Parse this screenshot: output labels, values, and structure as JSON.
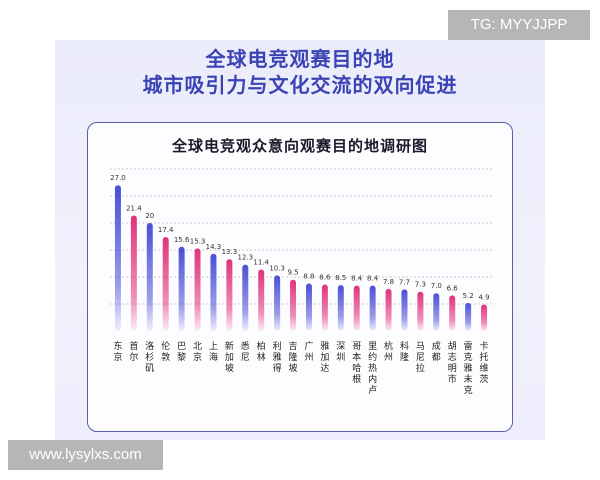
{
  "watermarks": {
    "top": "TG: MYYJJPP",
    "bottom": "www.lysylxs.com"
  },
  "headline": {
    "line1": "全球电竞观赛目的地",
    "line2": "城市吸引力与文化交流的双向促进"
  },
  "colors": {
    "blue_bar": "#4a4fd6",
    "pink_bar": "#e0337e",
    "headline": "#3a43b4",
    "grid": "#b8b8c8"
  },
  "chart_data": {
    "type": "bar",
    "title": "全球电竞观众意向观赛目的地调研图",
    "categories": [
      "东京",
      "首尔",
      "洛杉矶",
      "伦敦",
      "巴黎",
      "北京",
      "上海",
      "新加坡",
      "悉尼",
      "柏林",
      "利雅得",
      "吉隆坡",
      "广州",
      "雅加达",
      "深圳",
      "哥本哈根",
      "里约热内卢",
      "杭州",
      "科隆",
      "马尼拉",
      "成都",
      "胡志明市",
      "雷克雅未克",
      "卡托维茨"
    ],
    "values": [
      27.0,
      21.4,
      20,
      17.4,
      15.6,
      15.3,
      14.3,
      13.3,
      12.3,
      11.4,
      10.3,
      9.5,
      8.8,
      8.6,
      8.5,
      8.4,
      8.4,
      7.8,
      7.7,
      7.3,
      7.0,
      6.6,
      5.2,
      4.9
    ],
    "value_labels": [
      "27.0",
      "21.4",
      "20",
      "17.4",
      "15.6",
      "15.3",
      "14.3",
      "13.3",
      "12.3",
      "11.4",
      "10.3",
      "9.5",
      "8.8",
      "8.6",
      "8.5",
      "8.4",
      "8.4",
      "7.8",
      "7.7",
      "7.3",
      "7.0",
      "6.6",
      "5.2",
      "4.9"
    ],
    "bar_colors": [
      "blue",
      "pink",
      "blue",
      "pink",
      "blue",
      "pink",
      "blue",
      "pink",
      "blue",
      "pink",
      "blue",
      "pink",
      "blue",
      "pink",
      "blue",
      "pink",
      "blue",
      "pink",
      "blue",
      "pink",
      "blue",
      "pink",
      "blue",
      "pink"
    ],
    "ylim": [
      0,
      30
    ],
    "grid": true,
    "xlabel": "",
    "ylabel": ""
  }
}
